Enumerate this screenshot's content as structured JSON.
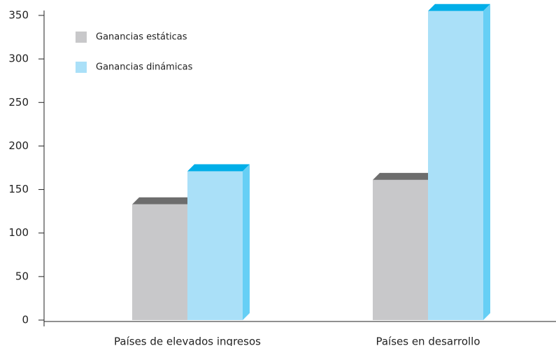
{
  "chart_data": {
    "type": "bar3d",
    "categories": [
      "Países de elevados ingresos",
      "Países en desarrollo"
    ],
    "series": [
      {
        "name": "Ganancias estáticas",
        "color": "#c8c8ca",
        "top_color": "#6d6d6d",
        "values": [
          133,
          161
        ]
      },
      {
        "name": "Ganancias dinámicas",
        "color": "#aae0f8",
        "top_color": "#00aee8",
        "side_color": "#66cff5",
        "values": [
          171,
          355
        ]
      }
    ],
    "ylim": [
      0,
      350
    ],
    "yticks": [
      0,
      50,
      100,
      150,
      200,
      250,
      300,
      350
    ],
    "legend": "upper left"
  }
}
